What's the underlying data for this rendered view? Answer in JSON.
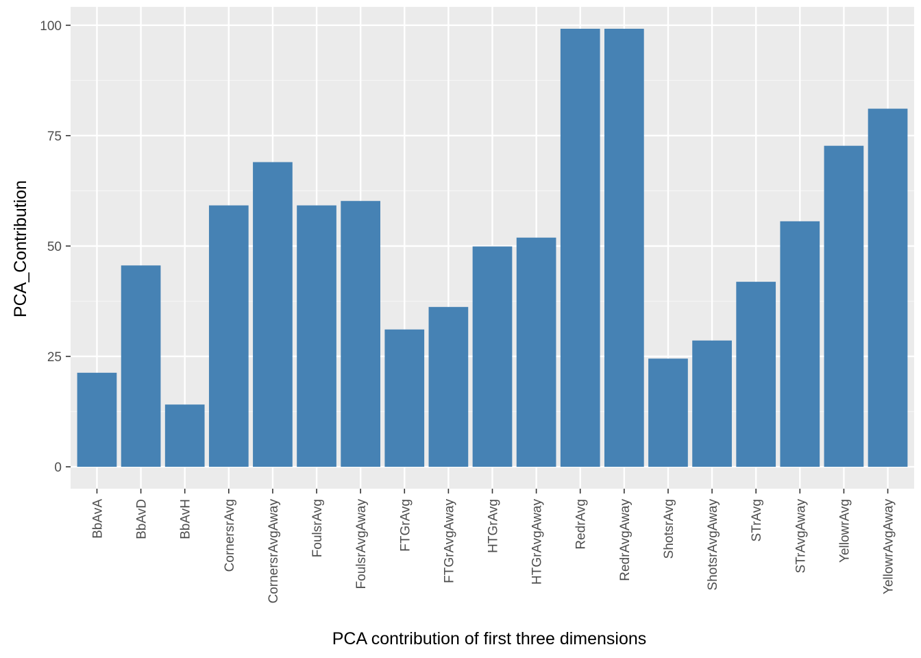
{
  "chart_data": {
    "type": "bar",
    "title": "",
    "xlabel": "PCA contribution of first three dimensions",
    "ylabel": "PCA_Contribution",
    "ylim": [
      -4.96,
      104.16
    ],
    "yticks": [
      0,
      25,
      50,
      75,
      100
    ],
    "ytick_labels": [
      "0",
      "25",
      "50",
      "75",
      "100"
    ],
    "grid": true,
    "legend": "none",
    "categories": [
      "BbAvA",
      "BbAvD",
      "BbAvH",
      "CornersrAvg",
      "CornersrAvgAway",
      "FoulsrAvg",
      "FoulsrAvgAway",
      "FTGrAvg",
      "FTGrAvgAway",
      "HTGrAvg",
      "HTGrAvgAway",
      "RedrAvg",
      "RedrAvgAway",
      "ShotsrAvg",
      "ShotsrAvgAway",
      "STrAvg",
      "STrAvgAway",
      "YellowrAvg",
      "YellowrAvgAway"
    ],
    "values": [
      21.3,
      45.6,
      14.1,
      59.2,
      69.0,
      59.2,
      60.2,
      31.1,
      36.2,
      49.9,
      51.9,
      99.2,
      99.2,
      24.5,
      28.6,
      41.9,
      55.6,
      72.7,
      81.1
    ],
    "colors": {
      "bar": "#4682b4",
      "panel": "#ebebeb",
      "grid_major": "#ffffff",
      "grid_minor": "#f5f5f5",
      "tick_text": "#4d4d4d",
      "tick_mark": "#333333"
    }
  }
}
